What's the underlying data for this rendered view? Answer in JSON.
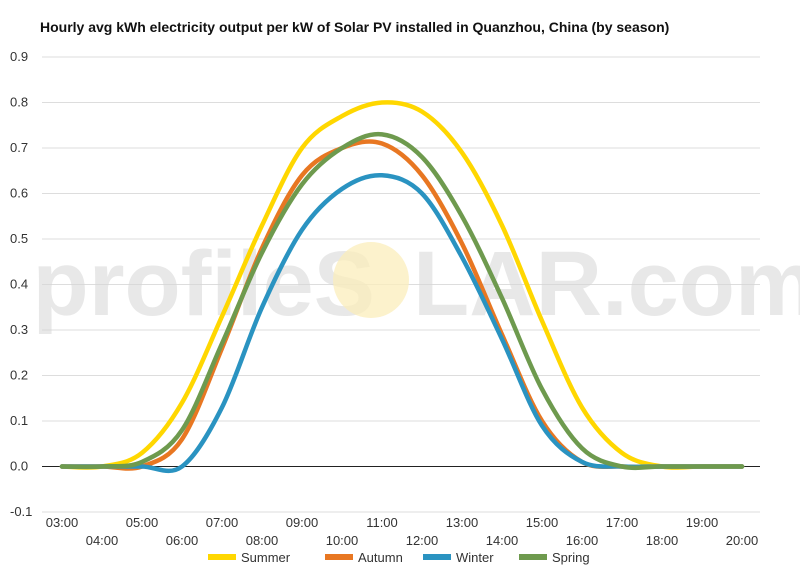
{
  "watermark": {
    "left": "profileS",
    "right": "LAR.com"
  },
  "chart_data": {
    "type": "line",
    "title": "Hourly avg kWh electricity output per kW of Solar PV installed in Quanzhou, China (by season)",
    "xlabel": "",
    "ylabel": "",
    "x": [
      "03:00",
      "04:00",
      "05:00",
      "06:00",
      "07:00",
      "08:00",
      "09:00",
      "10:00",
      "11:00",
      "12:00",
      "13:00",
      "14:00",
      "15:00",
      "16:00",
      "17:00",
      "18:00",
      "19:00",
      "20:00"
    ],
    "ylim": [
      -0.1,
      0.9
    ],
    "yticks": [
      -0.1,
      0.0,
      0.1,
      0.2,
      0.3,
      0.4,
      0.5,
      0.6,
      0.7,
      0.8,
      0.9
    ],
    "ytick_labels": [
      "-0.1",
      "0.0",
      "0.1",
      "0.2",
      "0.3",
      "0.4",
      "0.5",
      "0.6",
      "0.7",
      "0.8",
      "0.9"
    ],
    "grid": true,
    "legend_position": "bottom",
    "series": [
      {
        "name": "Summer",
        "color": "#FFD700",
        "values": [
          0.0,
          0.0,
          0.03,
          0.14,
          0.33,
          0.53,
          0.7,
          0.77,
          0.8,
          0.78,
          0.69,
          0.53,
          0.32,
          0.13,
          0.03,
          0.0,
          0.0,
          0.0
        ]
      },
      {
        "name": "Autumn",
        "color": "#E87722",
        "values": [
          0.0,
          0.0,
          0.0,
          0.06,
          0.26,
          0.48,
          0.64,
          0.7,
          0.71,
          0.64,
          0.49,
          0.29,
          0.1,
          0.01,
          0.0,
          0.0,
          0.0,
          0.0
        ]
      },
      {
        "name": "Winter",
        "color": "#2A93C1",
        "values": [
          0.0,
          0.0,
          0.0,
          0.0,
          0.13,
          0.35,
          0.52,
          0.61,
          0.64,
          0.6,
          0.46,
          0.28,
          0.09,
          0.01,
          0.0,
          0.0,
          0.0,
          0.0
        ]
      },
      {
        "name": "Spring",
        "color": "#6E9A4E",
        "values": [
          0.0,
          0.0,
          0.01,
          0.08,
          0.27,
          0.47,
          0.62,
          0.7,
          0.73,
          0.68,
          0.55,
          0.37,
          0.17,
          0.04,
          0.0,
          0.0,
          0.0,
          0.0
        ]
      }
    ]
  }
}
